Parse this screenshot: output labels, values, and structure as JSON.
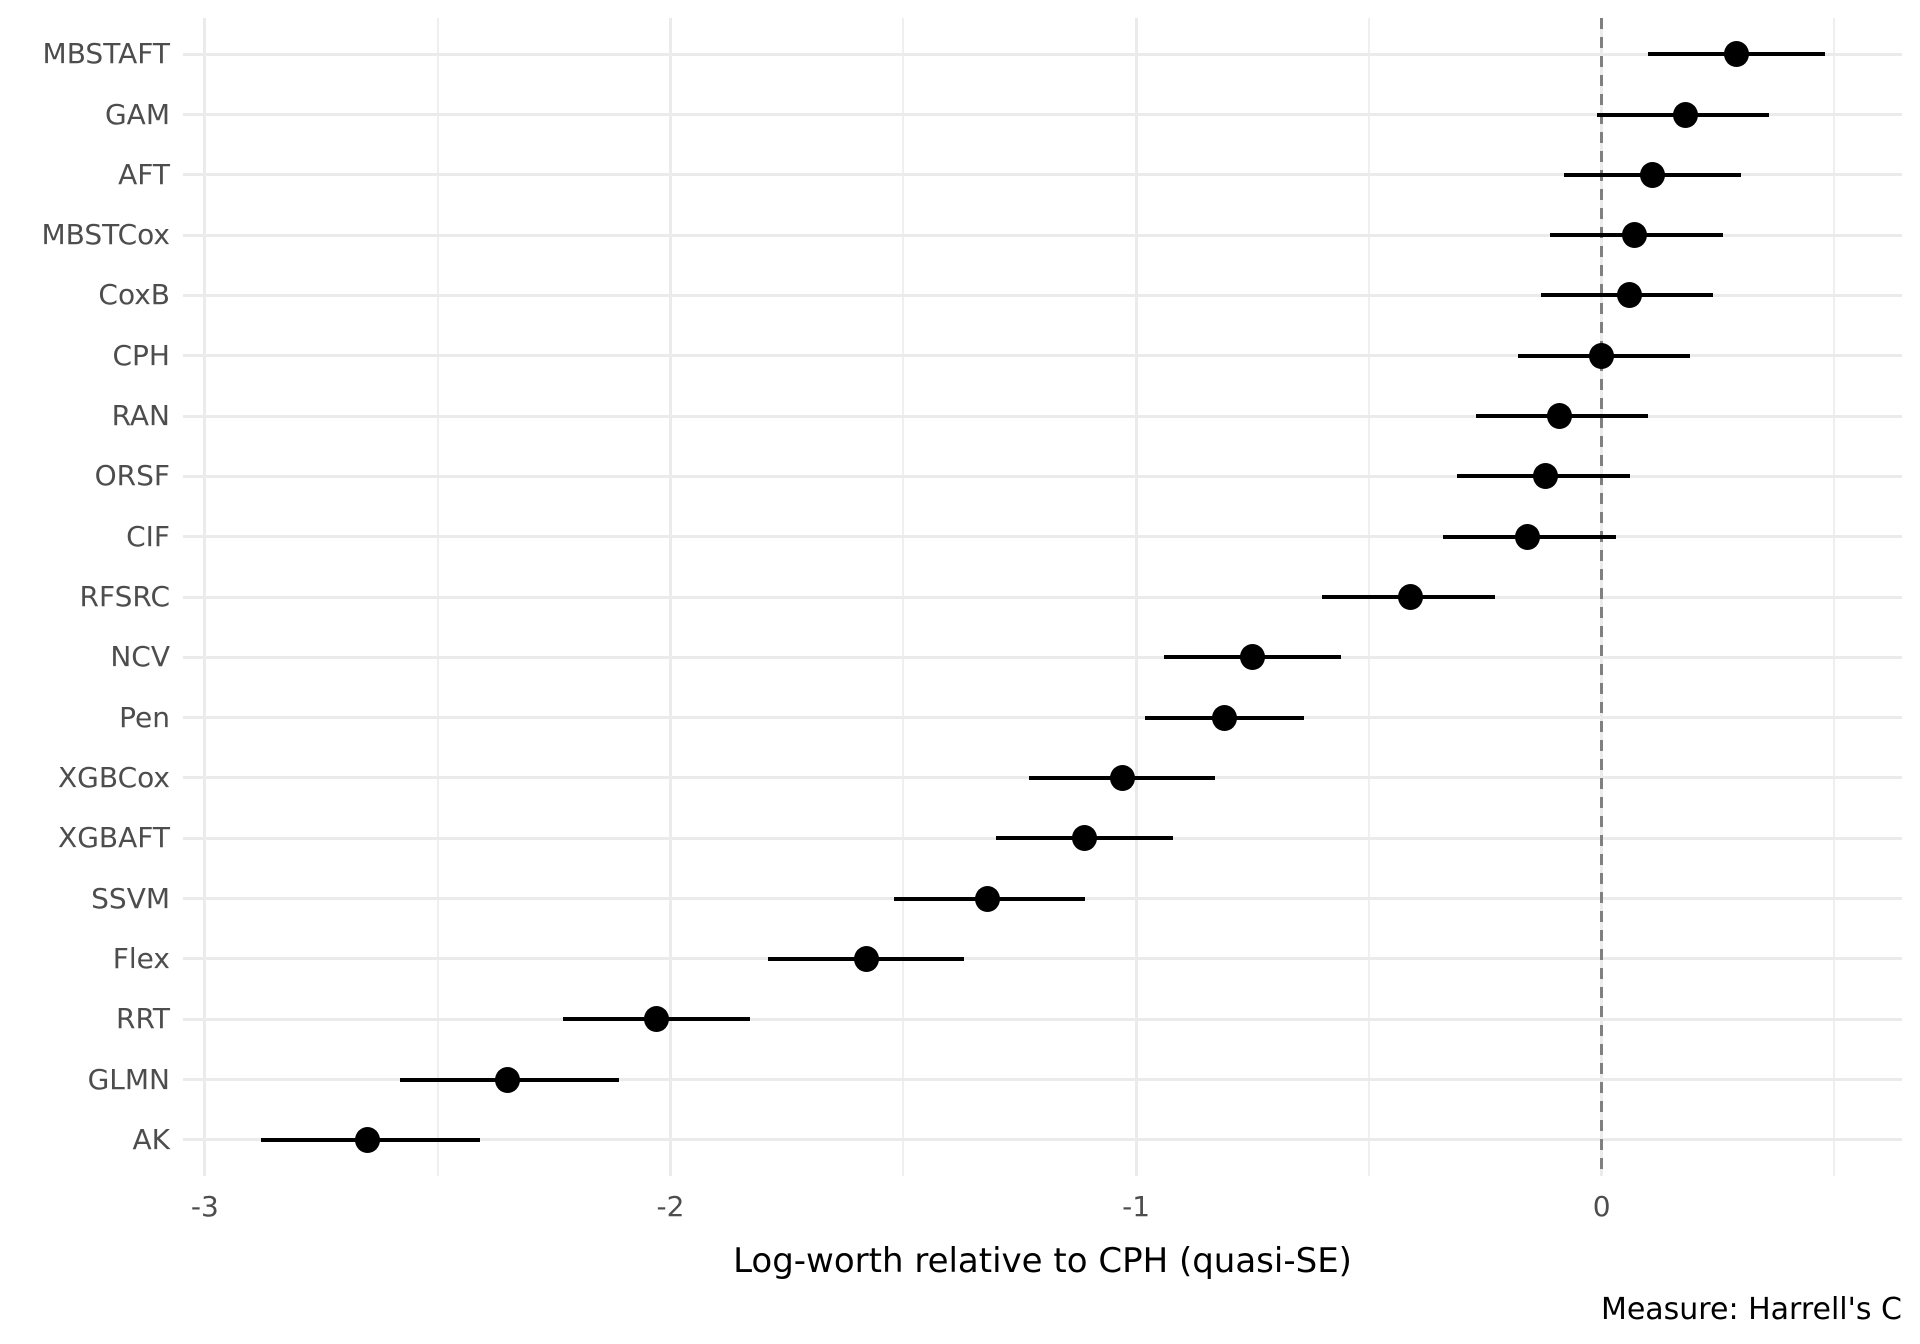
{
  "chart_data": {
    "type": "scatter",
    "subtype": "dot-and-interval (forest plot)",
    "orientation": "horizontal",
    "title": "",
    "xlabel": "Log-worth relative to CPH (quasi-SE)",
    "ylabel": "",
    "caption": "Measure: Harrell's C",
    "categories": [
      "MBSTAFT",
      "GAM",
      "AFT",
      "MBSTCox",
      "CoxB",
      "CPH",
      "RAN",
      "ORSF",
      "CIF",
      "RFSRC",
      "NCV",
      "Pen",
      "XGBCox",
      "XGBAFT",
      "SSVM",
      "Flex",
      "RRT",
      "GLMN",
      "AK"
    ],
    "series": [
      {
        "name": "Log-worth relative to CPH",
        "points": [
          {
            "model": "MBSTAFT",
            "estimate": 0.29,
            "lower": 0.1,
            "upper": 0.48
          },
          {
            "model": "GAM",
            "estimate": 0.18,
            "lower": -0.01,
            "upper": 0.36
          },
          {
            "model": "AFT",
            "estimate": 0.11,
            "lower": -0.08,
            "upper": 0.3
          },
          {
            "model": "MBSTCox",
            "estimate": 0.07,
            "lower": -0.11,
            "upper": 0.26
          },
          {
            "model": "CoxB",
            "estimate": 0.06,
            "lower": -0.13,
            "upper": 0.24
          },
          {
            "model": "CPH",
            "estimate": 0.0,
            "lower": -0.18,
            "upper": 0.19
          },
          {
            "model": "RAN",
            "estimate": -0.09,
            "lower": -0.27,
            "upper": 0.1
          },
          {
            "model": "ORSF",
            "estimate": -0.12,
            "lower": -0.31,
            "upper": 0.06
          },
          {
            "model": "CIF",
            "estimate": -0.16,
            "lower": -0.34,
            "upper": 0.03
          },
          {
            "model": "RFSRC",
            "estimate": -0.41,
            "lower": -0.6,
            "upper": -0.23
          },
          {
            "model": "NCV",
            "estimate": -0.75,
            "lower": -0.94,
            "upper": -0.56
          },
          {
            "model": "Pen",
            "estimate": -0.81,
            "lower": -0.98,
            "upper": -0.64
          },
          {
            "model": "XGBCox",
            "estimate": -1.03,
            "lower": -1.23,
            "upper": -0.83
          },
          {
            "model": "XGBAFT",
            "estimate": -1.11,
            "lower": -1.3,
            "upper": -0.92
          },
          {
            "model": "SSVM",
            "estimate": -1.32,
            "lower": -1.52,
            "upper": -1.11
          },
          {
            "model": "Flex",
            "estimate": -1.58,
            "lower": -1.79,
            "upper": -1.37
          },
          {
            "model": "RRT",
            "estimate": -2.03,
            "lower": -2.23,
            "upper": -1.83
          },
          {
            "model": "GLMN",
            "estimate": -2.35,
            "lower": -2.58,
            "upper": -2.11
          },
          {
            "model": "AK",
            "estimate": -2.65,
            "lower": -2.88,
            "upper": -2.41
          }
        ]
      }
    ],
    "xlim": [
      -3.047,
      0.645
    ],
    "x_major_breaks": [
      -3,
      -2,
      -1,
      0
    ],
    "x_major_break_labels": [
      "-3",
      "-2",
      "-1",
      "0"
    ],
    "x_minor_breaks": [
      -2.5,
      -1.5,
      -0.5,
      0.5
    ],
    "reference_line_x": 0,
    "reference_line_style": "dashed",
    "grid": true,
    "legend": false,
    "colors": {
      "point": "#000000",
      "error_bar": "#000000",
      "grid_major": "#ebebeb",
      "grid_minor": "#efefef",
      "reference_line": "#808080",
      "tick_label": "#4d4d4d",
      "axis_title": "#000000",
      "caption": "#000000",
      "background": "#ffffff"
    }
  }
}
